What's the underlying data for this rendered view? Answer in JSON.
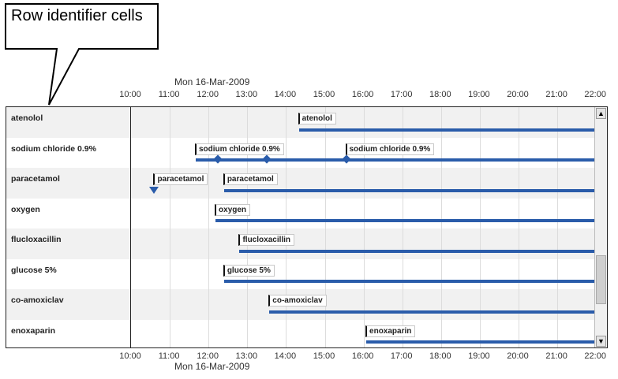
{
  "callout": "Row identifier cells",
  "date_label": "Mon 16-Mar-2009",
  "ticks": [
    "10:00",
    "11:00",
    "12:00",
    "13:00",
    "14:00",
    "15:00",
    "16:00",
    "17:00",
    "18:00",
    "19:00",
    "20:00",
    "21:00",
    "22:00"
  ],
  "axis_start_hour": 10,
  "axis_end_hour": 22,
  "accent": "#2a5caa",
  "rows": [
    {
      "name": "atenolol",
      "events": [
        {
          "time": 14.33,
          "label": "atenolol",
          "continuous": true
        }
      ]
    },
    {
      "name": "sodium chloride 0.9%",
      "events": [
        {
          "time": 11.67,
          "label": "sodium chloride 0.9%",
          "continuous": true
        },
        {
          "time": 12.25,
          "notch": true
        },
        {
          "time": 13.5,
          "notch": true
        },
        {
          "time": 15.55,
          "label": "sodium chloride 0.9%",
          "notch": true
        }
      ]
    },
    {
      "name": "paracetamol",
      "events": [
        {
          "time": 10.6,
          "label": "paracetamol",
          "single": true
        },
        {
          "time": 12.4,
          "label": "paracetamol",
          "continuous": true
        }
      ]
    },
    {
      "name": "oxygen",
      "events": [
        {
          "time": 12.18,
          "label": "oxygen",
          "continuous": true
        }
      ]
    },
    {
      "name": "flucloxacillin",
      "events": [
        {
          "time": 12.8,
          "label": "flucloxacillin",
          "continuous": true
        }
      ]
    },
    {
      "name": "glucose 5%",
      "events": [
        {
          "time": 12.4,
          "label": "glucose 5%",
          "continuous": true
        }
      ]
    },
    {
      "name": "co-amoxiclav",
      "events": [
        {
          "time": 13.57,
          "label": "co-amoxiclav",
          "continuous": true
        }
      ]
    },
    {
      "name": "enoxaparin",
      "events": [
        {
          "time": 16.07,
          "label": "enoxaparin",
          "continuous": true
        }
      ]
    }
  ],
  "scroll": {
    "up": "▲",
    "down": "▼"
  }
}
